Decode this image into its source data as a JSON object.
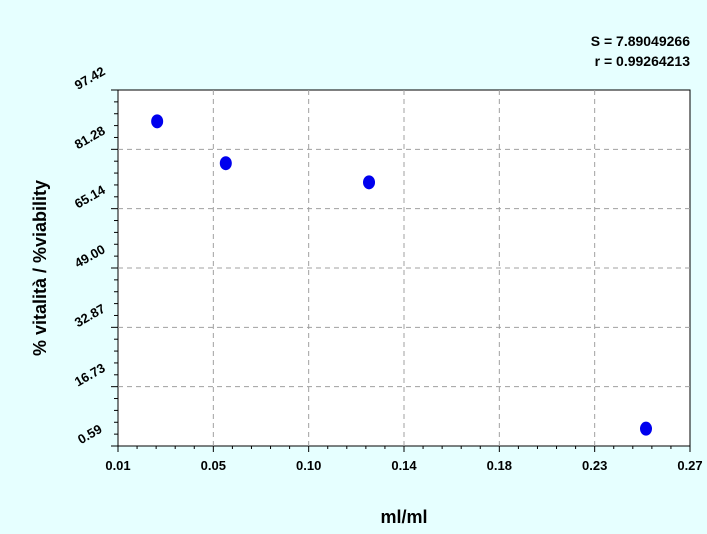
{
  "chart_data": {
    "type": "scatter",
    "title": "",
    "annotations": [
      "S = 7.89049266",
      "r = 0.99264213"
    ],
    "xlabel": "ml/ml",
    "ylabel": "% vitalità / %viability",
    "x_ticks": [
      "0.01",
      "0.05",
      "0.10",
      "0.14",
      "0.18",
      "0.23",
      "0.27"
    ],
    "y_ticks": [
      "0.59",
      "16.73",
      "32.87",
      "49.00",
      "65.14",
      "81.28",
      "97.42"
    ],
    "xlim": [
      0.01,
      0.27
    ],
    "ylim": [
      0.59,
      97.42
    ],
    "grid": true,
    "marker_color": "#0000ee",
    "series": [
      {
        "x": [
          0.0278,
          0.059,
          0.1241,
          0.25
        ],
        "y": [
          88.9,
          77.5,
          72.3,
          5.3
        ]
      }
    ]
  }
}
